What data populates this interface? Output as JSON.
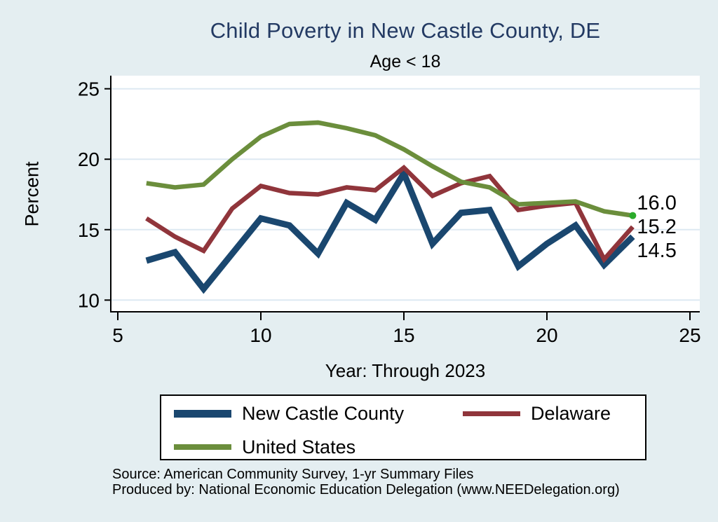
{
  "title": "Child Poverty in New Castle County, DE",
  "subtitle": "Age < 18",
  "y_axis_label": "Percent",
  "x_axis_label": "Year: Through 2023",
  "end_labels": [
    "16.0",
    "15.2",
    "14.5"
  ],
  "legend": {
    "items": [
      {
        "label": "New Castle County"
      },
      {
        "label": "Delaware"
      },
      {
        "label": "United States"
      }
    ]
  },
  "footer": {
    "source_line": "Source: American Community Survey, 1-yr Summary Files",
    "produced_line": "Produced by: National Economic Education Delegation (www.NEEDelegation.org)"
  },
  "colors": {
    "background": "#e4eef1",
    "plot_background": "#ffffff",
    "gridline": "#dde9f2",
    "axis": "#000000",
    "title": "#233a63",
    "end_marker": "#2bab2b",
    "new_castle": "#1a476f",
    "delaware": "#90353b",
    "united_states": "#6b8e3c"
  },
  "chart_data": {
    "type": "line",
    "title": "Child Poverty in New Castle County, DE",
    "subtitle": "Age < 18",
    "xlabel": "Year: Through 2023",
    "ylabel": "Percent",
    "x": [
      6,
      7,
      8,
      9,
      10,
      11,
      12,
      13,
      14,
      15,
      16,
      17,
      18,
      19,
      20,
      21,
      22,
      23
    ],
    "x_ticks": [
      5,
      10,
      15,
      20,
      25
    ],
    "y_ticks": [
      10,
      15,
      20,
      25
    ],
    "xlim": [
      5,
      25.4
    ],
    "ylim": [
      8.9,
      25.9
    ],
    "grid": true,
    "legend_position": "bottom",
    "series": [
      {
        "name": "New Castle County",
        "color": "#1a476f",
        "stroke_width": 9,
        "values": [
          12.8,
          13.4,
          10.8,
          13.3,
          15.8,
          15.3,
          13.3,
          16.9,
          15.7,
          19.0,
          14.0,
          16.2,
          16.4,
          12.4,
          14.0,
          15.3,
          12.5,
          14.5
        ],
        "end_marker": false
      },
      {
        "name": "Delaware",
        "color": "#90353b",
        "stroke_width": 6.5,
        "values": [
          15.8,
          14.5,
          13.5,
          16.5,
          18.1,
          17.6,
          17.5,
          18.0,
          17.8,
          19.4,
          17.4,
          18.3,
          18.8,
          16.4,
          16.7,
          16.9,
          12.9,
          15.2
        ],
        "end_marker": false
      },
      {
        "name": "United States",
        "color": "#6b8e3c",
        "stroke_width": 6.5,
        "values": [
          18.3,
          18.0,
          18.2,
          20.0,
          21.6,
          22.5,
          22.6,
          22.2,
          21.7,
          20.7,
          19.5,
          18.4,
          18.0,
          16.8,
          16.9,
          17.0,
          16.3,
          16.0
        ],
        "end_marker": true
      }
    ]
  }
}
